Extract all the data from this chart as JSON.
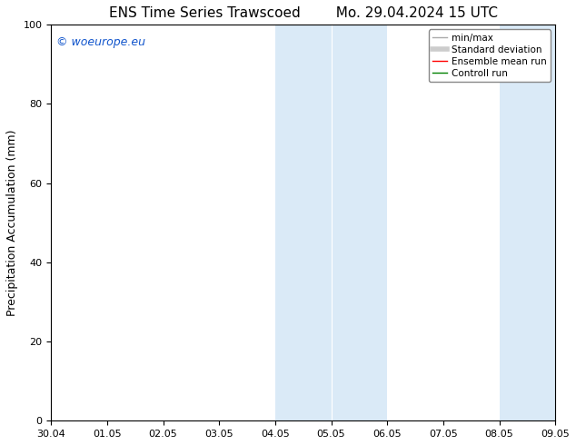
{
  "title_left": "ENS Time Series Trawscoed",
  "title_right": "Mo. 29.04.2024 15 UTC",
  "ylabel": "Precipitation Accumulation (mm)",
  "ylim": [
    0,
    100
  ],
  "yticks": [
    0,
    20,
    40,
    60,
    80,
    100
  ],
  "xtick_labels": [
    "30.04",
    "01.05",
    "02.05",
    "03.05",
    "04.05",
    "05.05",
    "06.05",
    "07.05",
    "08.05",
    "09.05"
  ],
  "shaded_regions": [
    {
      "xstart": 4.0,
      "xend": 5.0,
      "color": "#daeaf7"
    },
    {
      "xstart": 5.0,
      "xend": 6.0,
      "color": "#daeaf7"
    },
    {
      "xstart": 8.0,
      "xend": 9.0,
      "color": "#daeaf7"
    },
    {
      "xstart": 9.0,
      "xend": 9.5,
      "color": "#daeaf7"
    }
  ],
  "divider_lines": [
    5.0,
    9.0
  ],
  "watermark_text": "© woeurope.eu",
  "watermark_color": "#1155cc",
  "background_color": "#ffffff",
  "legend_entries": [
    {
      "label": "min/max",
      "color": "#aaaaaa",
      "lw": 1.0,
      "linestyle": "-"
    },
    {
      "label": "Standard deviation",
      "color": "#cccccc",
      "lw": 4,
      "linestyle": "-"
    },
    {
      "label": "Ensemble mean run",
      "color": "#ff0000",
      "lw": 1.0,
      "linestyle": "-"
    },
    {
      "label": "Controll run",
      "color": "#008000",
      "lw": 1.0,
      "linestyle": "-"
    }
  ],
  "title_fontsize": 11,
  "tick_fontsize": 8,
  "ylabel_fontsize": 9,
  "legend_fontsize": 7.5
}
